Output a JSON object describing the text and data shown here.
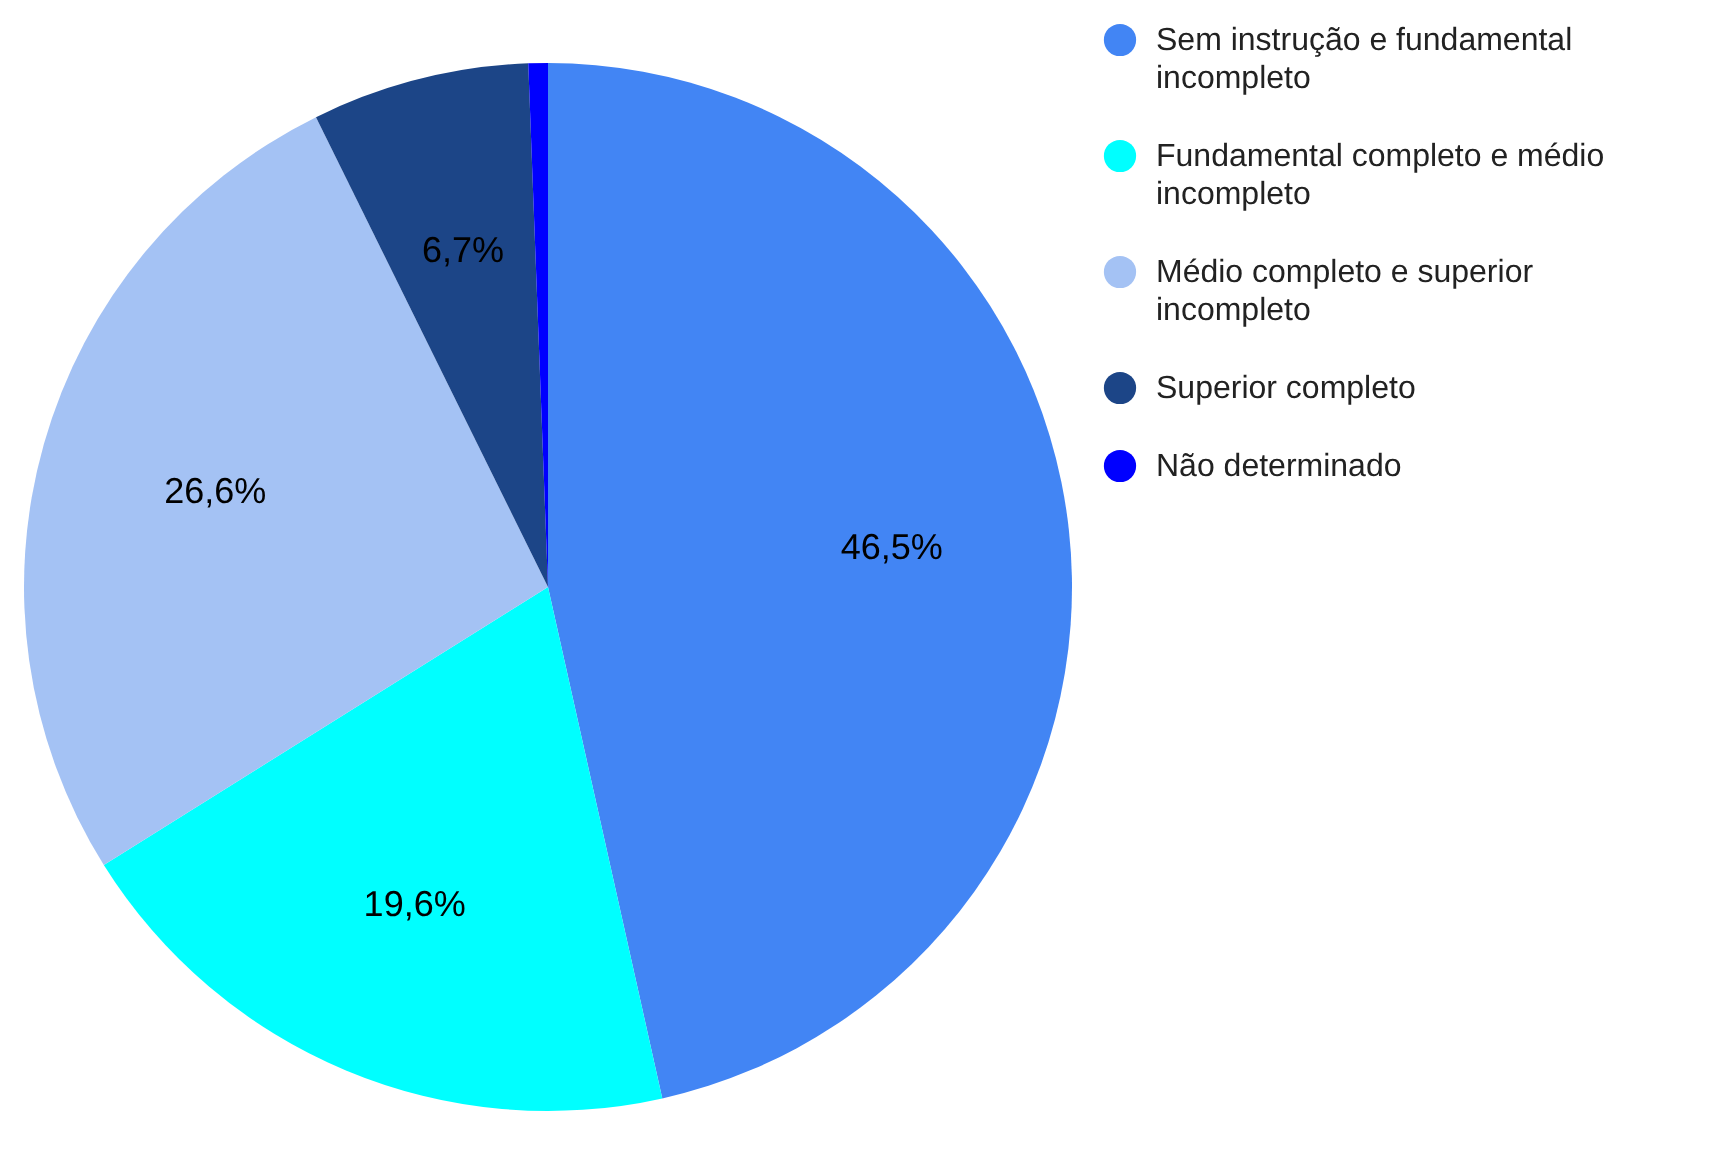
{
  "chart_data": {
    "type": "pie",
    "categories": [
      "Sem instrução e fundamental incompleto",
      "Fundamental completo e médio incompleto",
      "Médio completo e superior incompleto",
      "Superior completo",
      "Não determinado"
    ],
    "values": [
      46.5,
      19.6,
      26.6,
      6.7,
      0.6
    ],
    "colors": [
      "#4285f4",
      "#00ffff",
      "#a4c2f4",
      "#1c4587",
      "#0000ff"
    ],
    "value_labels": [
      "46,5%",
      "19,6%",
      "26,6%",
      "6,7%",
      null
    ],
    "legend": "top right"
  }
}
